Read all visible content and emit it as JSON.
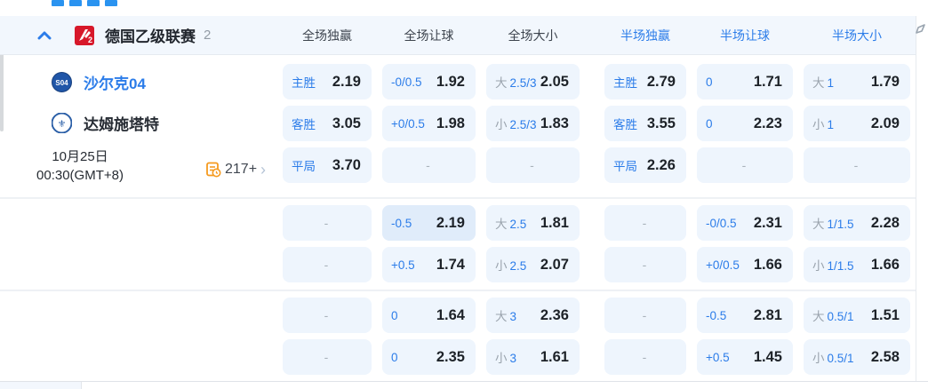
{
  "misc": {
    "dash": "-"
  },
  "header": {
    "collapse_icon": "chevron-up",
    "league_name": "德国乙级联赛",
    "match_count": "2",
    "columns": [
      {
        "label": "全场独赢",
        "accent": false
      },
      {
        "label": "全场让球",
        "accent": false
      },
      {
        "label": "全场大小",
        "accent": false
      },
      {
        "label": "半场独赢",
        "accent": true
      },
      {
        "label": "半场让球",
        "accent": true
      },
      {
        "label": "半场大小",
        "accent": true
      }
    ]
  },
  "match": {
    "home_team": "沙尔克04",
    "away_team": "达姆施塔特",
    "date_line1": "10月25日",
    "date_line2": "00:30(GMT+8)",
    "more_markets_count": "217+"
  },
  "odds": {
    "groups": [
      [
        [
          {
            "label": "主胜",
            "value": "2.19"
          },
          {
            "label": "-0/0.5",
            "value": "1.92"
          },
          {
            "label_gray": "大",
            "label": "2.5/3",
            "value": "2.05"
          },
          {
            "label": "主胜",
            "value": "2.79"
          },
          {
            "label": "0",
            "value": "1.71"
          },
          {
            "label_gray": "大",
            "label": "1",
            "value": "1.79"
          }
        ],
        [
          {
            "label": "客胜",
            "value": "3.05"
          },
          {
            "label": "+0/0.5",
            "value": "1.98"
          },
          {
            "label_gray": "小",
            "label": "2.5/3",
            "value": "1.83"
          },
          {
            "label": "客胜",
            "value": "3.55"
          },
          {
            "label": "0",
            "value": "2.23"
          },
          {
            "label_gray": "小",
            "label": "1",
            "value": "2.09"
          }
        ],
        [
          {
            "label": "平局",
            "value": "3.70"
          },
          {
            "empty": true
          },
          {
            "empty": true
          },
          {
            "label": "平局",
            "value": "2.26"
          },
          {
            "empty": true
          },
          {
            "empty": true
          }
        ]
      ],
      [
        [
          {
            "empty": true
          },
          {
            "label": "-0.5",
            "value": "2.19",
            "highlight": true
          },
          {
            "label_gray": "大",
            "label": "2.5",
            "value": "1.81"
          },
          {
            "empty": true
          },
          {
            "label": "-0/0.5",
            "value": "2.31"
          },
          {
            "label_gray": "大",
            "label": "1/1.5",
            "value": "2.28"
          }
        ],
        [
          {
            "empty": true
          },
          {
            "label": "+0.5",
            "value": "1.74"
          },
          {
            "label_gray": "小",
            "label": "2.5",
            "value": "2.07"
          },
          {
            "empty": true
          },
          {
            "label": "+0/0.5",
            "value": "1.66"
          },
          {
            "label_gray": "小",
            "label": "1/1.5",
            "value": "1.66"
          }
        ]
      ],
      [
        [
          {
            "empty": true
          },
          {
            "label": "0",
            "value": "1.64"
          },
          {
            "label_gray": "大",
            "label": "3",
            "value": "2.36"
          },
          {
            "empty": true
          },
          {
            "label": "-0.5",
            "value": "2.81"
          },
          {
            "label_gray": "大",
            "label": "0.5/1",
            "value": "1.51"
          }
        ],
        [
          {
            "empty": true
          },
          {
            "label": "0",
            "value": "2.35"
          },
          {
            "label_gray": "小",
            "label": "3",
            "value": "1.61"
          },
          {
            "empty": true
          },
          {
            "label": "+0.5",
            "value": "1.45"
          },
          {
            "label_gray": "小",
            "label": "0.5/1",
            "value": "2.58"
          }
        ]
      ]
    ]
  },
  "colors": {
    "accent": "#2b7ce9",
    "cell_bg": "#eef5fd",
    "cell_bg_highlight": "#e0ecfa",
    "header_bg": "#f2f7fd",
    "value_text": "#1d2228",
    "gray_label": "#9aa3ad",
    "league_logo_red": "#d7182a",
    "markets_icon_orange": "#f59a1f"
  }
}
